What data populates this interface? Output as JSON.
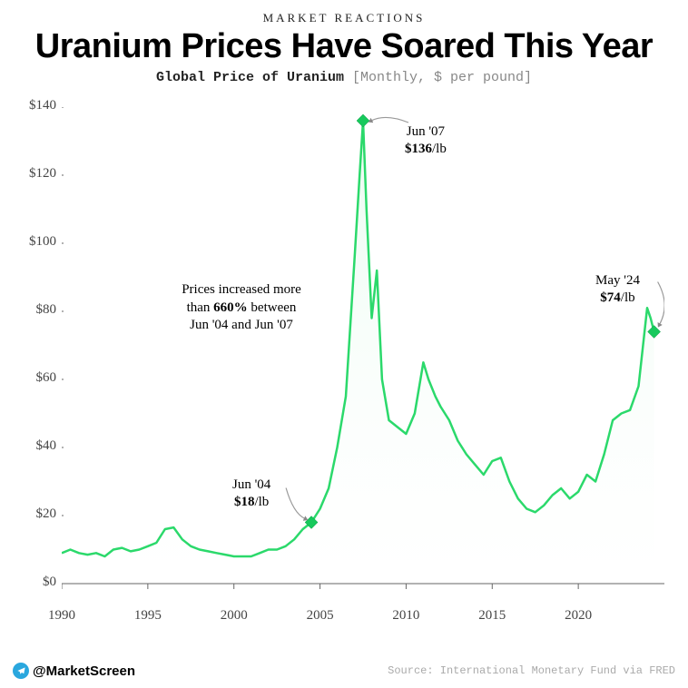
{
  "header": {
    "kicker": "MARKET REACTIONS",
    "title": "Uranium Prices Have Soared This Year",
    "subtitle_bold": "Global Price of Uranium",
    "subtitle_light": " [Monthly, $ per pound]"
  },
  "chart": {
    "type": "area-line",
    "x_domain": [
      1990,
      2025
    ],
    "y_domain": [
      0,
      140
    ],
    "y_ticks": [
      0,
      20,
      40,
      60,
      80,
      100,
      120,
      140
    ],
    "y_tick_labels": [
      "$0",
      "$20",
      "$40",
      "$60",
      "$80",
      "$100",
      "$120",
      "$140"
    ],
    "x_ticks": [
      1990,
      1995,
      2000,
      2005,
      2010,
      2015,
      2020
    ],
    "x_tick_labels": [
      "1990",
      "1995",
      "2000",
      "2005",
      "2010",
      "2015",
      "2020"
    ],
    "line_color": "#2bd96b",
    "line_width": 2.5,
    "fill_top": "#e8fbef",
    "fill_bottom": "#ffffff",
    "marker_color": "#17c95c",
    "marker_size": 7,
    "axis_color": "#666666",
    "tick_font_size": 15,
    "background": "#ffffff",
    "series": [
      [
        1990.0,
        9
      ],
      [
        1990.5,
        10
      ],
      [
        1991.0,
        9
      ],
      [
        1991.5,
        8.5
      ],
      [
        1992.0,
        9
      ],
      [
        1992.5,
        8
      ],
      [
        1993.0,
        10
      ],
      [
        1993.5,
        10.5
      ],
      [
        1994.0,
        9.5
      ],
      [
        1994.5,
        10
      ],
      [
        1995.0,
        11
      ],
      [
        1995.5,
        12
      ],
      [
        1996.0,
        16
      ],
      [
        1996.5,
        16.5
      ],
      [
        1997.0,
        13
      ],
      [
        1997.5,
        11
      ],
      [
        1998.0,
        10
      ],
      [
        1998.5,
        9.5
      ],
      [
        1999.0,
        9
      ],
      [
        1999.5,
        8.5
      ],
      [
        2000.0,
        8
      ],
      [
        2000.5,
        8
      ],
      [
        2001.0,
        8
      ],
      [
        2001.5,
        9
      ],
      [
        2002.0,
        10
      ],
      [
        2002.5,
        10
      ],
      [
        2003.0,
        11
      ],
      [
        2003.5,
        13
      ],
      [
        2004.0,
        16
      ],
      [
        2004.5,
        18
      ],
      [
        2005.0,
        22
      ],
      [
        2005.5,
        28
      ],
      [
        2006.0,
        40
      ],
      [
        2006.5,
        55
      ],
      [
        2007.0,
        95
      ],
      [
        2007.3,
        120
      ],
      [
        2007.5,
        136
      ],
      [
        2007.7,
        110
      ],
      [
        2008.0,
        78
      ],
      [
        2008.3,
        92
      ],
      [
        2008.6,
        60
      ],
      [
        2009.0,
        48
      ],
      [
        2009.5,
        46
      ],
      [
        2010.0,
        44
      ],
      [
        2010.5,
        50
      ],
      [
        2011.0,
        65
      ],
      [
        2011.3,
        60
      ],
      [
        2011.7,
        55
      ],
      [
        2012.0,
        52
      ],
      [
        2012.5,
        48
      ],
      [
        2013.0,
        42
      ],
      [
        2013.5,
        38
      ],
      [
        2014.0,
        35
      ],
      [
        2014.5,
        32
      ],
      [
        2015.0,
        36
      ],
      [
        2015.5,
        37
      ],
      [
        2016.0,
        30
      ],
      [
        2016.5,
        25
      ],
      [
        2017.0,
        22
      ],
      [
        2017.5,
        21
      ],
      [
        2018.0,
        23
      ],
      [
        2018.5,
        26
      ],
      [
        2019.0,
        28
      ],
      [
        2019.5,
        25
      ],
      [
        2020.0,
        27
      ],
      [
        2020.5,
        32
      ],
      [
        2021.0,
        30
      ],
      [
        2021.5,
        38
      ],
      [
        2022.0,
        48
      ],
      [
        2022.5,
        50
      ],
      [
        2023.0,
        51
      ],
      [
        2023.5,
        58
      ],
      [
        2024.0,
        81
      ],
      [
        2024.2,
        78
      ],
      [
        2024.4,
        74
      ]
    ],
    "markers": [
      {
        "x": 2004.5,
        "y": 18
      },
      {
        "x": 2007.5,
        "y": 136
      },
      {
        "x": 2024.4,
        "y": 74
      }
    ]
  },
  "annotations": {
    "jun04": {
      "date": "Jun '04",
      "price": "$18",
      "unit": "/lb"
    },
    "jun07": {
      "date": "Jun '07",
      "price": "$136",
      "unit": "/lb"
    },
    "may24": {
      "date": "May '24",
      "price": "$74",
      "unit": "/lb"
    },
    "note_l1": "Prices increased more",
    "note_l2_a": "than ",
    "note_l2_b": "660%",
    "note_l2_c": " between",
    "note_l3": "Jun '04 and Jun '07"
  },
  "footer": {
    "handle": "@MarketScreen",
    "source": "Source: International Monetary Fund via FRED"
  }
}
